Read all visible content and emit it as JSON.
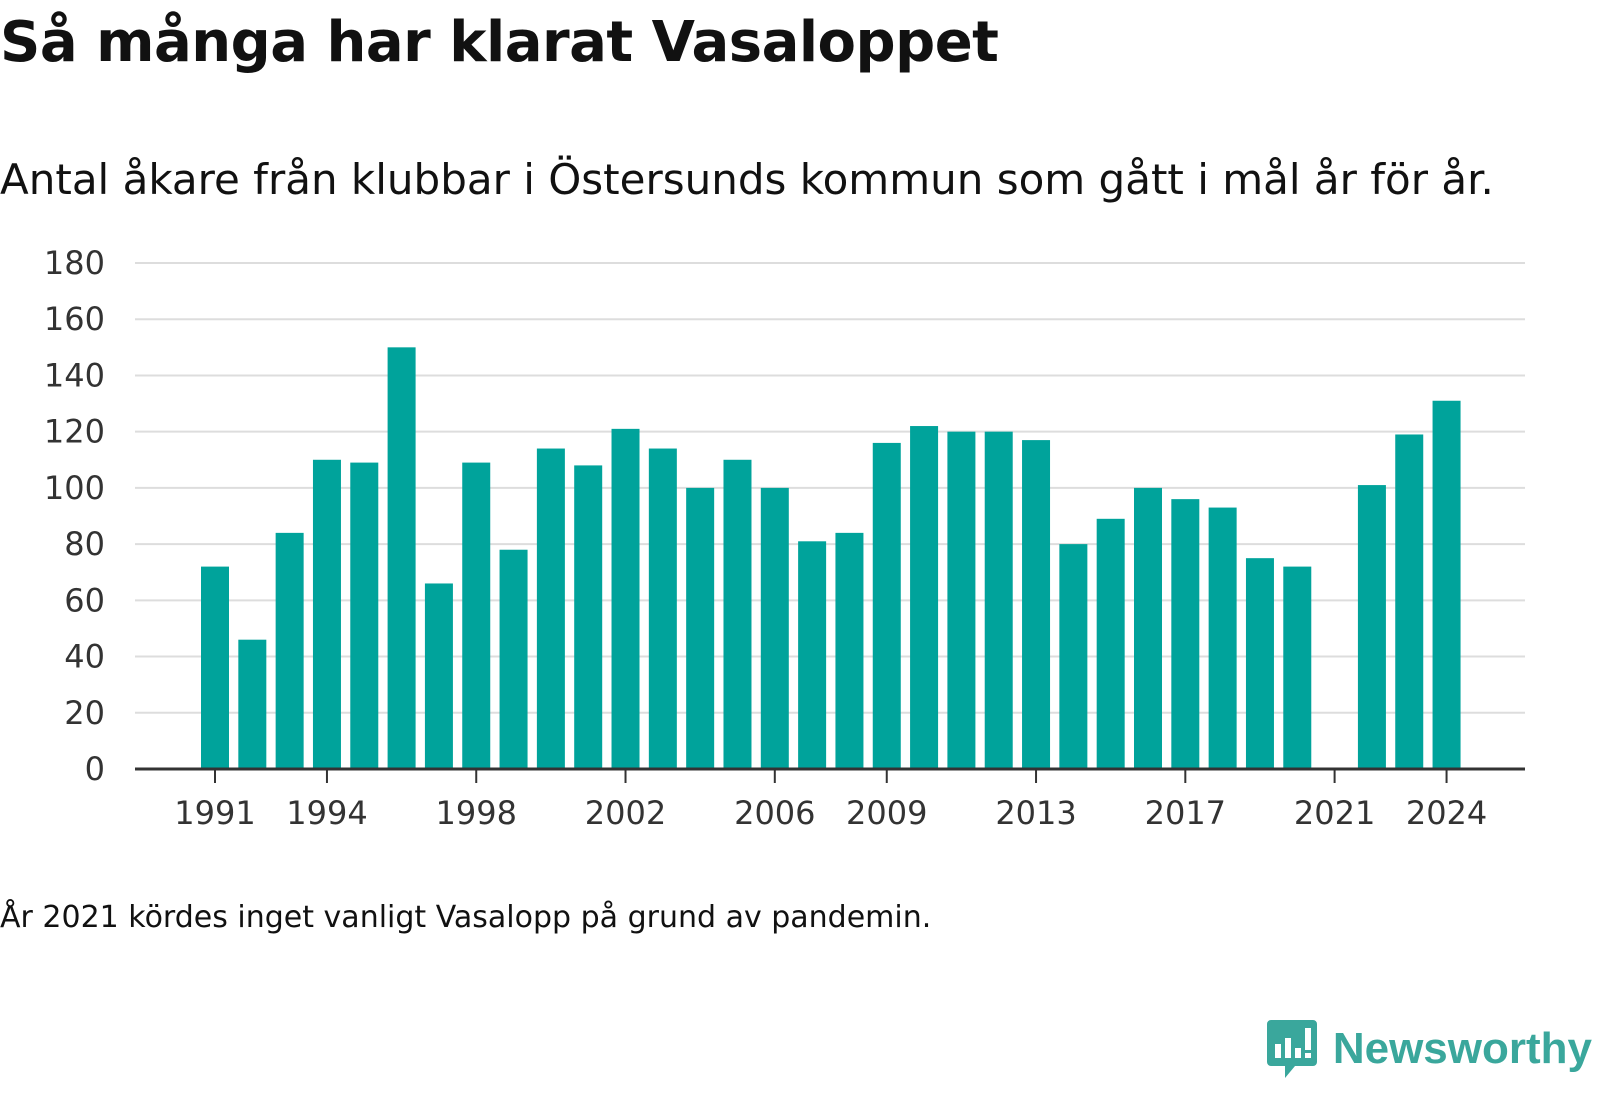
{
  "header": {
    "title": "Så många har klarat Vasaloppet",
    "subtitle": "Antal åkare från klubbar i Östersunds kommun som gått i mål år för år."
  },
  "footer": {
    "note": "År 2021 kördes inget vanligt Vasalopp på grund av pandemin.",
    "brand": "Newsworthy"
  },
  "colors": {
    "bar": "#00a39b",
    "grid": "#dddddd",
    "axis": "#333333",
    "brand": "#3aa79c"
  },
  "chart_data": {
    "type": "bar",
    "x": [
      1991,
      1992,
      1993,
      1994,
      1995,
      1996,
      1997,
      1998,
      1999,
      2000,
      2001,
      2002,
      2003,
      2004,
      2005,
      2006,
      2007,
      2008,
      2009,
      2010,
      2011,
      2012,
      2013,
      2014,
      2015,
      2016,
      2017,
      2018,
      2019,
      2020,
      2021,
      2022,
      2023,
      2024
    ],
    "values": [
      72,
      46,
      84,
      110,
      109,
      150,
      66,
      109,
      78,
      114,
      108,
      121,
      114,
      100,
      110,
      100,
      81,
      84,
      116,
      122,
      120,
      120,
      117,
      80,
      89,
      100,
      96,
      93,
      75,
      72,
      null,
      101,
      119,
      131
    ],
    "x_tick_labels": [
      "1991",
      "1994",
      "1998",
      "2002",
      "2006",
      "2009",
      "2013",
      "2017",
      "2021",
      "2024"
    ],
    "y_ticks": [
      0,
      20,
      40,
      60,
      80,
      100,
      120,
      140,
      160,
      180
    ],
    "ylim": [
      0,
      180
    ],
    "grid": true,
    "legend": "none",
    "xlabel": "",
    "ylabel": ""
  }
}
